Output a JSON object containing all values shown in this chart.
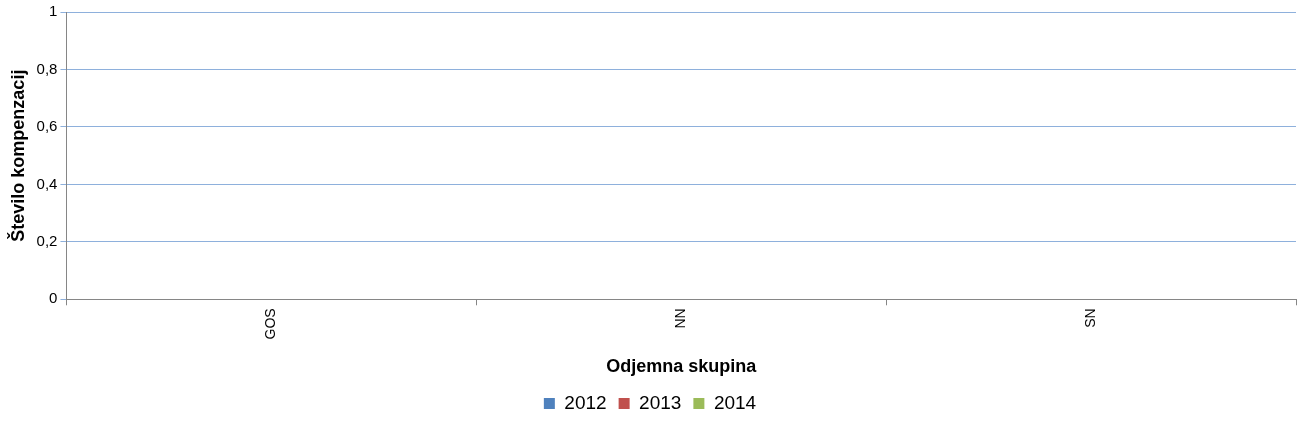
{
  "chart_data": {
    "type": "bar",
    "xlabel": "Odjemna skupina",
    "ylabel": "Število kompenzacij",
    "categories": [
      "GOS",
      "NN",
      "SN"
    ],
    "series": [
      {
        "name": "2012",
        "color": "#4f81bd",
        "values": [
          0,
          0,
          0
        ]
      },
      {
        "name": "2013",
        "color": "#c0504d",
        "values": [
          0,
          0,
          0
        ]
      },
      {
        "name": "2014",
        "color": "#9bbb59",
        "values": [
          0,
          0,
          0
        ]
      }
    ],
    "ylim": [
      0,
      1
    ],
    "yticks": [
      0,
      {
        "value": 0.2,
        "label": "0,2"
      },
      {
        "value": 0.4,
        "label": "0,4"
      },
      {
        "value": 0.6,
        "label": "0,6"
      },
      {
        "value": 0.8,
        "label": "0,8"
      },
      1
    ],
    "grid": "y",
    "legend": "bottom"
  }
}
